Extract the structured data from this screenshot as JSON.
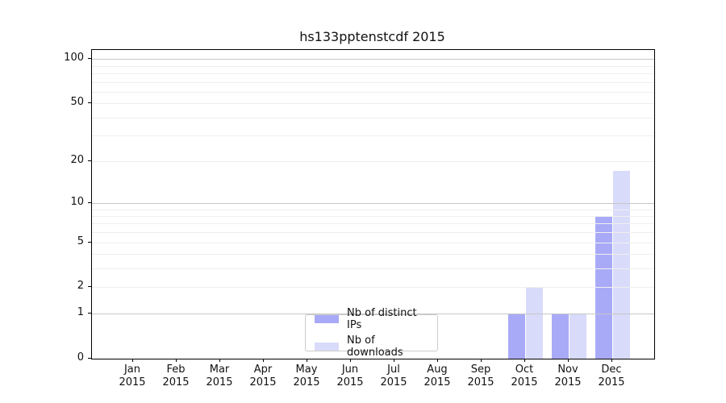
{
  "chart_data": {
    "type": "bar",
    "title": "hs133pptenstcdf 2015",
    "categories": [
      "Jan",
      "Feb",
      "Mar",
      "Apr",
      "May",
      "Jun",
      "Jul",
      "Aug",
      "Sep",
      "Oct",
      "Nov",
      "Dec"
    ],
    "x_tick_year": "2015",
    "series": [
      {
        "name": "Nb of distinct IPs",
        "color": "#a8aaf8",
        "values": [
          0,
          0,
          0,
          0,
          0,
          0,
          0,
          0,
          0,
          1,
          1,
          8
        ]
      },
      {
        "name": "Nb of downloads",
        "color": "#d9dbfa",
        "values": [
          0,
          0,
          0,
          0,
          0,
          0,
          0,
          0,
          0,
          2,
          1,
          17
        ]
      }
    ],
    "y_scale": "log10(1+v)",
    "ylim": [
      0,
      115
    ],
    "y_ticks": [
      0,
      1,
      2,
      5,
      10,
      20,
      50,
      100
    ],
    "y_major_gridlines": [
      1,
      10,
      100
    ],
    "y_minor_gridlines": [
      2,
      3,
      4,
      5,
      6,
      7,
      8,
      9,
      20,
      30,
      40,
      50,
      60,
      70,
      80,
      90
    ],
    "grid": true,
    "legend_position": "lower center",
    "colors": {
      "major_grid": "#c6c6c6",
      "minor_grid": "#efefef",
      "spine": "#000000",
      "background": "#ffffff"
    }
  }
}
